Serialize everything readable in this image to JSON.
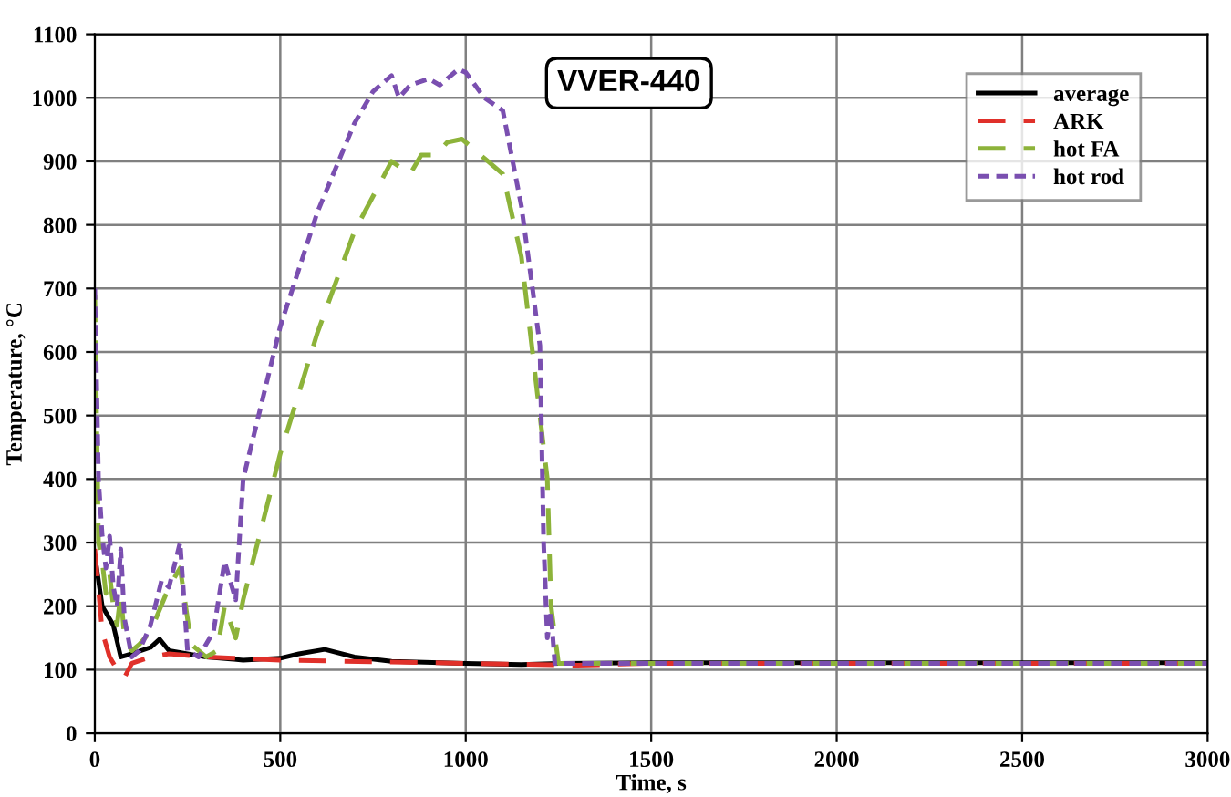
{
  "chart_data": {
    "type": "line",
    "xlabel": "Time, s",
    "ylabel": "Temperature, °C",
    "annotations": [
      "VVER-440"
    ],
    "xlim": [
      0,
      3000
    ],
    "xticks": [
      0,
      500,
      1000,
      1500,
      2000,
      2500,
      3000
    ],
    "ylim": [
      0,
      1100
    ],
    "yticks": [
      0,
      100,
      200,
      300,
      400,
      500,
      600,
      700,
      800,
      900,
      1000,
      1100
    ],
    "grid": true,
    "legend": "top right",
    "marker": "none",
    "series": [
      {
        "name": "average",
        "color": "#000000",
        "line_style": "solid",
        "x": [
          0,
          20,
          50,
          70,
          100,
          150,
          175,
          200,
          300,
          400,
          500,
          550,
          620,
          700,
          800,
          1000,
          1150,
          1250,
          1500,
          3000
        ],
        "values": [
          280,
          200,
          170,
          120,
          125,
          135,
          148,
          130,
          120,
          115,
          118,
          125,
          132,
          120,
          113,
          110,
          108,
          110,
          111,
          111
        ]
      },
      {
        "name": "ARK",
        "color": "#e0302a",
        "line_style": "dashed",
        "x": [
          0,
          20,
          40,
          60,
          80,
          100,
          150,
          200,
          300,
          500,
          800,
          1000,
          1200,
          1300,
          1500,
          3000
        ],
        "values": [
          290,
          160,
          120,
          100,
          88,
          110,
          120,
          125,
          120,
          115,
          112,
          110,
          108,
          107,
          110,
          110
        ]
      },
      {
        "name": "hot FA",
        "color": "#8db33a",
        "line_style": "dashed",
        "x": [
          0,
          10,
          20,
          30,
          40,
          50,
          60,
          70,
          80,
          100,
          120,
          150,
          200,
          230,
          260,
          300,
          330,
          350,
          380,
          400,
          500,
          600,
          700,
          800,
          850,
          880,
          920,
          950,
          990,
          1020,
          1060,
          1100,
          1150,
          1200,
          1220,
          1230,
          1250,
          1300,
          3000
        ],
        "values": [
          690,
          300,
          270,
          220,
          250,
          200,
          170,
          220,
          150,
          130,
          140,
          160,
          230,
          260,
          140,
          120,
          130,
          200,
          150,
          210,
          440,
          630,
          790,
          900,
          880,
          910,
          910,
          930,
          935,
          920,
          900,
          880,
          750,
          500,
          400,
          200,
          110,
          110,
          110
        ]
      },
      {
        "name": "hot rod",
        "color": "#7a4fb0",
        "line_style": "dotted",
        "x": [
          0,
          10,
          20,
          30,
          40,
          50,
          60,
          70,
          80,
          90,
          100,
          120,
          150,
          180,
          200,
          230,
          250,
          280,
          320,
          350,
          380,
          400,
          500,
          600,
          700,
          750,
          800,
          820,
          850,
          900,
          930,
          980,
          1000,
          1050,
          1100,
          1150,
          1180,
          1200,
          1210,
          1220,
          1230,
          1240,
          1300,
          3000
        ],
        "values": [
          700,
          400,
          310,
          260,
          310,
          230,
          200,
          290,
          180,
          150,
          120,
          130,
          170,
          240,
          230,
          300,
          130,
          120,
          160,
          270,
          210,
          400,
          640,
          820,
          960,
          1010,
          1035,
          1000,
          1020,
          1030,
          1020,
          1045,
          1040,
          1000,
          980,
          830,
          700,
          610,
          300,
          150,
          190,
          110,
          110,
          110
        ]
      }
    ]
  }
}
